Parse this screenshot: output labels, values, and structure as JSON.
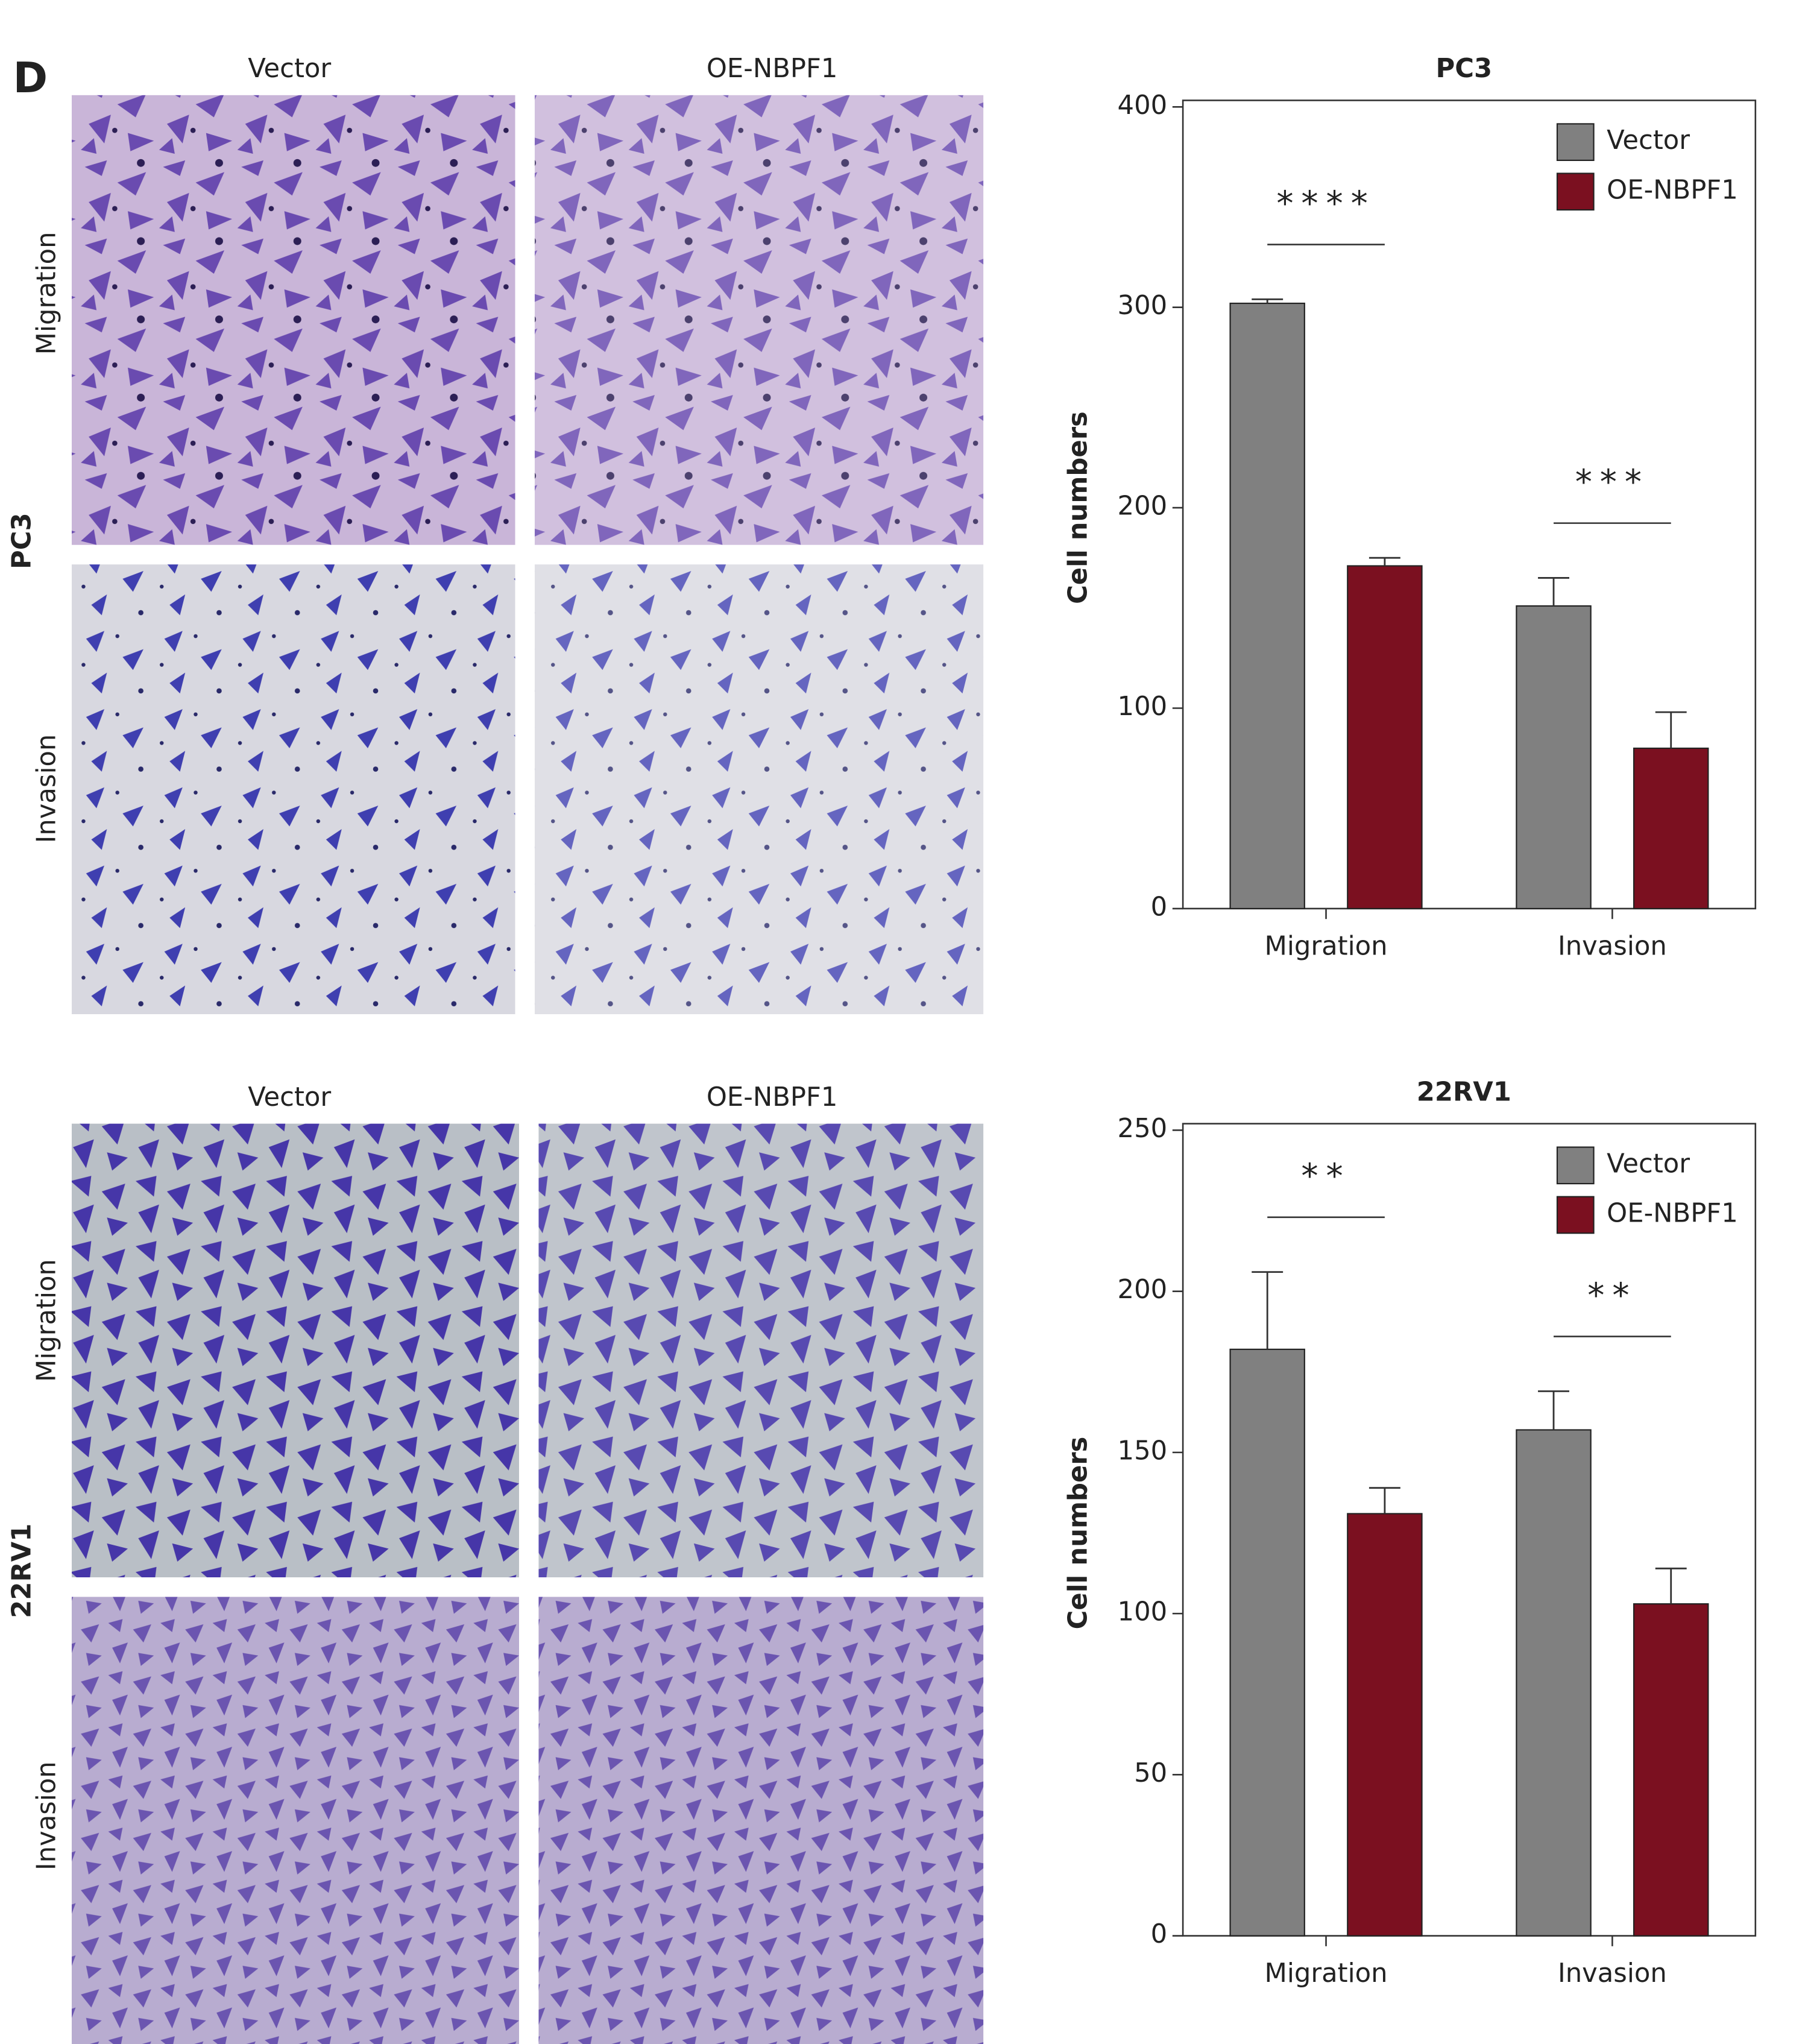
{
  "panel_label": "D",
  "image_columns": [
    "Vector",
    "OE-NBPF1"
  ],
  "image_rows": [
    "Migration",
    "Invasion"
  ],
  "cell_lines": [
    "PC3",
    "22RV1"
  ],
  "chart_data": [
    {
      "type": "bar",
      "title": "PC3",
      "y_label": "Cell numbers",
      "categories": [
        "Migration",
        "Invasion"
      ],
      "series": [
        {
          "name": "Vector",
          "color": "#808080",
          "values": [
            302,
            151
          ],
          "errors": [
            2,
            14
          ]
        },
        {
          "name": "OE-NBPF1",
          "color": "#7b1020",
          "values": [
            171,
            80
          ],
          "errors": [
            4,
            18
          ]
        }
      ],
      "significance": [
        "****",
        "***"
      ],
      "ylim": [
        0,
        400
      ],
      "yticks": [
        0,
        100,
        200,
        300,
        400
      ],
      "legend": "upper right"
    },
    {
      "type": "bar",
      "title": "22RV1",
      "y_label": "Cell numbers",
      "categories": [
        "Migration",
        "Invasion"
      ],
      "series": [
        {
          "name": "Vector",
          "color": "#808080",
          "values": [
            182,
            157
          ],
          "errors": [
            24,
            12
          ]
        },
        {
          "name": "OE-NBPF1",
          "color": "#7b1020",
          "values": [
            131,
            103
          ],
          "errors": [
            8,
            11
          ]
        }
      ],
      "significance": [
        "**",
        "**"
      ],
      "ylim": [
        0,
        250
      ],
      "yticks": [
        0,
        50,
        100,
        150,
        200,
        250
      ],
      "legend": "upper right"
    }
  ]
}
